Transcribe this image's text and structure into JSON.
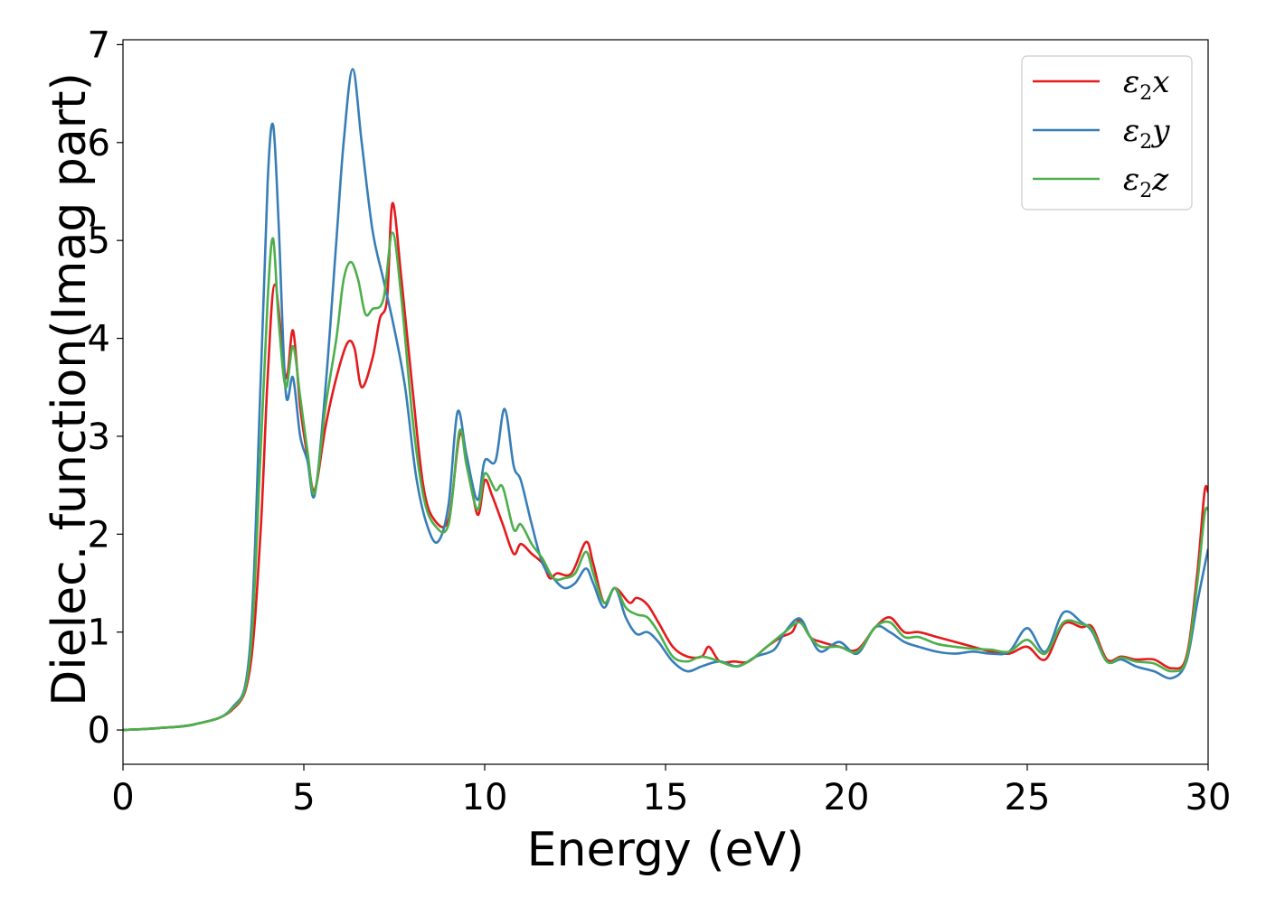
{
  "chart_data": {
    "type": "line",
    "title": "",
    "xlabel": "Energy (eV)",
    "ylabel": "Dielec. function(Imag part)",
    "xlim": [
      0,
      30
    ],
    "ylim": [
      -0.35,
      7.05
    ],
    "xticks": [
      0,
      5,
      10,
      15,
      20,
      25,
      30
    ],
    "yticks": [
      0,
      1,
      2,
      3,
      4,
      5,
      6,
      7
    ],
    "grid": false,
    "legend_position": "top-right",
    "series": [
      {
        "name": "ε₂x",
        "legend_main": "ε",
        "legend_sub": "2",
        "legend_tail": "x",
        "color": "#e41a1c",
        "points": [
          [
            0,
            0
          ],
          [
            1,
            0.02
          ],
          [
            2,
            0.06
          ],
          [
            3,
            0.2
          ],
          [
            3.5,
            0.6
          ],
          [
            3.8,
            2.0
          ],
          [
            4.0,
            3.6
          ],
          [
            4.2,
            4.55
          ],
          [
            4.5,
            3.6
          ],
          [
            4.7,
            4.08
          ],
          [
            4.9,
            3.3
          ],
          [
            5.1,
            2.8
          ],
          [
            5.3,
            2.45
          ],
          [
            5.6,
            3.1
          ],
          [
            5.9,
            3.6
          ],
          [
            6.2,
            3.95
          ],
          [
            6.4,
            3.9
          ],
          [
            6.6,
            3.5
          ],
          [
            6.9,
            3.8
          ],
          [
            7.1,
            4.2
          ],
          [
            7.3,
            4.4
          ],
          [
            7.45,
            5.38
          ],
          [
            7.7,
            4.6
          ],
          [
            8.0,
            3.5
          ],
          [
            8.3,
            2.5
          ],
          [
            8.6,
            2.15
          ],
          [
            9.0,
            2.15
          ],
          [
            9.3,
            3.0
          ],
          [
            9.5,
            2.8
          ],
          [
            9.8,
            2.2
          ],
          [
            10.0,
            2.55
          ],
          [
            10.2,
            2.4
          ],
          [
            10.5,
            2.1
          ],
          [
            10.8,
            1.8
          ],
          [
            11.0,
            1.9
          ],
          [
            11.3,
            1.8
          ],
          [
            11.6,
            1.7
          ],
          [
            11.8,
            1.55
          ],
          [
            12.0,
            1.6
          ],
          [
            12.4,
            1.6
          ],
          [
            12.8,
            1.92
          ],
          [
            13.0,
            1.7
          ],
          [
            13.3,
            1.3
          ],
          [
            13.6,
            1.45
          ],
          [
            14.0,
            1.3
          ],
          [
            14.2,
            1.35
          ],
          [
            14.5,
            1.28
          ],
          [
            14.8,
            1.1
          ],
          [
            15.2,
            0.85
          ],
          [
            15.6,
            0.75
          ],
          [
            16.0,
            0.75
          ],
          [
            16.2,
            0.85
          ],
          [
            16.5,
            0.7
          ],
          [
            16.9,
            0.7
          ],
          [
            17.3,
            0.7
          ],
          [
            17.8,
            0.85
          ],
          [
            18.2,
            0.95
          ],
          [
            18.5,
            1.0
          ],
          [
            18.7,
            1.12
          ],
          [
            19.0,
            0.95
          ],
          [
            19.3,
            0.9
          ],
          [
            19.8,
            0.85
          ],
          [
            20.3,
            0.82
          ],
          [
            20.8,
            1.05
          ],
          [
            21.2,
            1.15
          ],
          [
            21.6,
            1.0
          ],
          [
            22.0,
            1.0
          ],
          [
            22.5,
            0.95
          ],
          [
            23.0,
            0.9
          ],
          [
            23.5,
            0.85
          ],
          [
            24.0,
            0.8
          ],
          [
            24.5,
            0.78
          ],
          [
            25.0,
            0.85
          ],
          [
            25.5,
            0.72
          ],
          [
            26.0,
            1.08
          ],
          [
            26.5,
            1.05
          ],
          [
            26.8,
            1.05
          ],
          [
            27.2,
            0.72
          ],
          [
            27.6,
            0.75
          ],
          [
            28.0,
            0.72
          ],
          [
            28.5,
            0.72
          ],
          [
            29.0,
            0.63
          ],
          [
            29.4,
            0.75
          ],
          [
            29.7,
            1.6
          ],
          [
            29.9,
            2.43
          ],
          [
            30,
            2.43
          ]
        ]
      },
      {
        "name": "ε₂y",
        "legend_main": "ε",
        "legend_sub": "2",
        "legend_tail": "y",
        "color": "#377eb8",
        "points": [
          [
            0,
            0
          ],
          [
            1,
            0.02
          ],
          [
            2,
            0.06
          ],
          [
            3,
            0.22
          ],
          [
            3.5,
            0.8
          ],
          [
            3.8,
            3.5
          ],
          [
            4.0,
            5.6
          ],
          [
            4.15,
            6.18
          ],
          [
            4.3,
            5.2
          ],
          [
            4.5,
            3.45
          ],
          [
            4.7,
            3.6
          ],
          [
            4.9,
            3.0
          ],
          [
            5.1,
            2.75
          ],
          [
            5.3,
            2.4
          ],
          [
            5.6,
            3.5
          ],
          [
            5.9,
            5.0
          ],
          [
            6.1,
            6.0
          ],
          [
            6.35,
            6.75
          ],
          [
            6.6,
            6.0
          ],
          [
            6.9,
            5.1
          ],
          [
            7.2,
            4.6
          ],
          [
            7.5,
            4.1
          ],
          [
            7.8,
            3.5
          ],
          [
            8.1,
            2.6
          ],
          [
            8.4,
            2.1
          ],
          [
            8.7,
            1.92
          ],
          [
            9.0,
            2.3
          ],
          [
            9.25,
            3.25
          ],
          [
            9.5,
            2.8
          ],
          [
            9.8,
            2.35
          ],
          [
            10.0,
            2.75
          ],
          [
            10.3,
            2.75
          ],
          [
            10.55,
            3.28
          ],
          [
            10.8,
            2.7
          ],
          [
            11.0,
            2.55
          ],
          [
            11.3,
            2.1
          ],
          [
            11.6,
            1.7
          ],
          [
            11.9,
            1.55
          ],
          [
            12.2,
            1.45
          ],
          [
            12.5,
            1.5
          ],
          [
            12.8,
            1.65
          ],
          [
            13.0,
            1.5
          ],
          [
            13.3,
            1.25
          ],
          [
            13.6,
            1.45
          ],
          [
            13.9,
            1.15
          ],
          [
            14.2,
            0.98
          ],
          [
            14.5,
            1.0
          ],
          [
            14.8,
            0.9
          ],
          [
            15.2,
            0.7
          ],
          [
            15.6,
            0.6
          ],
          [
            16.0,
            0.65
          ],
          [
            16.5,
            0.7
          ],
          [
            17.0,
            0.65
          ],
          [
            17.5,
            0.75
          ],
          [
            18.0,
            0.82
          ],
          [
            18.3,
            1.0
          ],
          [
            18.7,
            1.14
          ],
          [
            19.0,
            0.95
          ],
          [
            19.3,
            0.8
          ],
          [
            19.8,
            0.9
          ],
          [
            20.3,
            0.78
          ],
          [
            20.8,
            1.05
          ],
          [
            21.2,
            1.0
          ],
          [
            21.6,
            0.9
          ],
          [
            22.0,
            0.85
          ],
          [
            22.5,
            0.8
          ],
          [
            23.0,
            0.78
          ],
          [
            23.5,
            0.8
          ],
          [
            24.0,
            0.78
          ],
          [
            24.5,
            0.8
          ],
          [
            25.0,
            1.04
          ],
          [
            25.5,
            0.8
          ],
          [
            26.0,
            1.2
          ],
          [
            26.5,
            1.1
          ],
          [
            26.8,
            1.0
          ],
          [
            27.2,
            0.7
          ],
          [
            27.6,
            0.72
          ],
          [
            28.0,
            0.65
          ],
          [
            28.5,
            0.6
          ],
          [
            29.0,
            0.53
          ],
          [
            29.4,
            0.7
          ],
          [
            29.7,
            1.3
          ],
          [
            30,
            1.85
          ]
        ]
      },
      {
        "name": "ε₂z",
        "legend_main": "ε",
        "legend_sub": "2",
        "legend_tail": "z",
        "color": "#4daf4a",
        "points": [
          [
            0,
            0
          ],
          [
            1,
            0.02
          ],
          [
            2,
            0.06
          ],
          [
            3,
            0.21
          ],
          [
            3.5,
            0.7
          ],
          [
            3.8,
            2.8
          ],
          [
            4.0,
            4.4
          ],
          [
            4.15,
            5.02
          ],
          [
            4.3,
            4.2
          ],
          [
            4.5,
            3.5
          ],
          [
            4.7,
            3.92
          ],
          [
            4.9,
            3.4
          ],
          [
            5.1,
            2.85
          ],
          [
            5.3,
            2.42
          ],
          [
            5.6,
            3.3
          ],
          [
            5.9,
            4.0
          ],
          [
            6.1,
            4.6
          ],
          [
            6.3,
            4.78
          ],
          [
            6.5,
            4.6
          ],
          [
            6.7,
            4.25
          ],
          [
            6.9,
            4.3
          ],
          [
            7.2,
            4.4
          ],
          [
            7.45,
            5.08
          ],
          [
            7.7,
            4.4
          ],
          [
            8.0,
            3.2
          ],
          [
            8.3,
            2.4
          ],
          [
            8.6,
            2.1
          ],
          [
            9.0,
            2.1
          ],
          [
            9.3,
            3.05
          ],
          [
            9.5,
            2.7
          ],
          [
            9.8,
            2.25
          ],
          [
            10.0,
            2.62
          ],
          [
            10.3,
            2.45
          ],
          [
            10.5,
            2.48
          ],
          [
            10.8,
            2.05
          ],
          [
            11.0,
            2.1
          ],
          [
            11.3,
            1.9
          ],
          [
            11.6,
            1.75
          ],
          [
            11.9,
            1.55
          ],
          [
            12.2,
            1.55
          ],
          [
            12.5,
            1.6
          ],
          [
            12.8,
            1.82
          ],
          [
            13.0,
            1.6
          ],
          [
            13.3,
            1.3
          ],
          [
            13.6,
            1.45
          ],
          [
            13.9,
            1.25
          ],
          [
            14.2,
            1.18
          ],
          [
            14.5,
            1.15
          ],
          [
            14.8,
            1.0
          ],
          [
            15.2,
            0.75
          ],
          [
            15.6,
            0.7
          ],
          [
            16.0,
            0.75
          ],
          [
            16.5,
            0.7
          ],
          [
            16.9,
            0.65
          ],
          [
            17.3,
            0.7
          ],
          [
            17.8,
            0.85
          ],
          [
            18.3,
            1.0
          ],
          [
            18.7,
            1.1
          ],
          [
            19.0,
            0.95
          ],
          [
            19.3,
            0.85
          ],
          [
            19.8,
            0.85
          ],
          [
            20.3,
            0.8
          ],
          [
            20.8,
            1.05
          ],
          [
            21.2,
            1.1
          ],
          [
            21.6,
            0.95
          ],
          [
            22.0,
            0.95
          ],
          [
            22.5,
            0.88
          ],
          [
            23.0,
            0.85
          ],
          [
            23.5,
            0.83
          ],
          [
            24.0,
            0.82
          ],
          [
            24.5,
            0.8
          ],
          [
            25.0,
            0.92
          ],
          [
            25.5,
            0.78
          ],
          [
            26.0,
            1.1
          ],
          [
            26.5,
            1.08
          ],
          [
            26.8,
            1.02
          ],
          [
            27.2,
            0.7
          ],
          [
            27.6,
            0.74
          ],
          [
            28.0,
            0.7
          ],
          [
            28.5,
            0.68
          ],
          [
            29.0,
            0.6
          ],
          [
            29.4,
            0.72
          ],
          [
            29.7,
            1.5
          ],
          [
            29.9,
            2.2
          ],
          [
            30,
            2.25
          ]
        ]
      }
    ]
  }
}
